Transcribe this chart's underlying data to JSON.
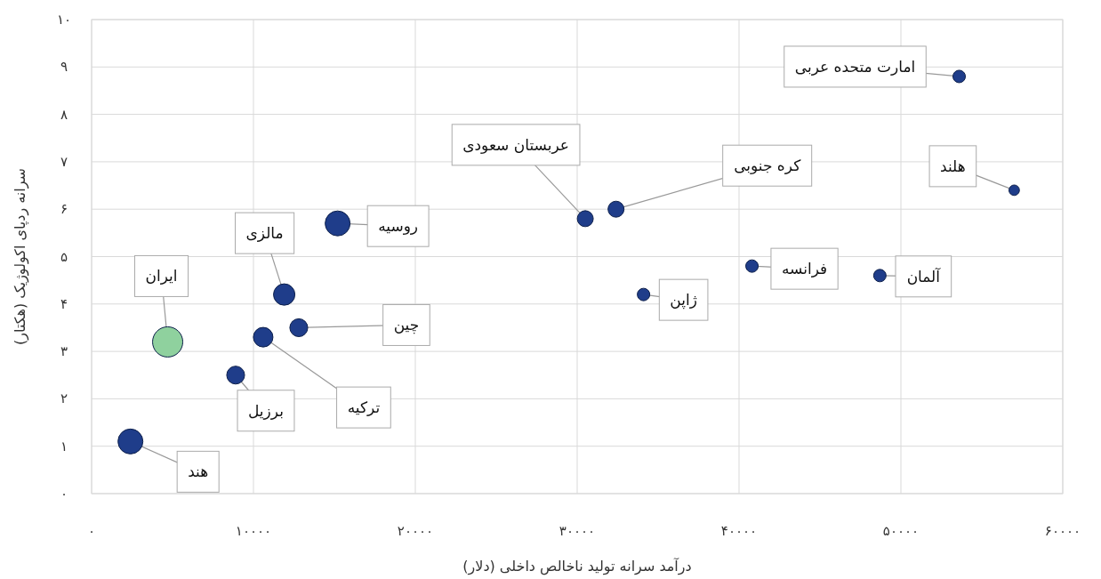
{
  "chart_data": {
    "type": "bubble",
    "xlabel": "درآمد سرانه تولید ناخالص داخلی (دلار)",
    "ylabel": "سرانه ردپای اکولوژیک (هکتار)",
    "x": [
      2400,
      4700,
      8900,
      10600,
      12800,
      11900,
      15200,
      30500,
      32400,
      34100,
      40800,
      48700,
      53600,
      57000
    ],
    "values": [
      1.1,
      3.2,
      2.5,
      3.3,
      3.5,
      4.2,
      5.7,
      5.8,
      6.0,
      4.2,
      4.8,
      4.6,
      8.8,
      6.4
    ],
    "sizes": [
      0.68,
      1,
      0.35,
      0.42,
      0.35,
      0.5,
      0.68,
      0.28,
      0.28,
      0.17,
      0.17,
      0.17,
      0.17,
      0.12
    ],
    "colors": [
      "#1f3d8a",
      "#8fd19e",
      "#1f3d8a",
      "#1f3d8a",
      "#1f3d8a",
      "#1f3d8a",
      "#1f3d8a",
      "#1f3d8a",
      "#1f3d8a",
      "#1f3d8a",
      "#1f3d8a",
      "#1f3d8a",
      "#1f3d8a",
      "#1f3d8a"
    ],
    "annotations": [
      {
        "text": "هند",
        "x": 2400,
        "y": 1.1
      },
      {
        "text": "ایران",
        "x": 4700,
        "y": 3.2
      },
      {
        "text": "برزیل",
        "x": 8900,
        "y": 2.5
      },
      {
        "text": "ترکیه",
        "x": 10600,
        "y": 3.3
      },
      {
        "text": "چین",
        "x": 12800,
        "y": 3.5
      },
      {
        "text": "مالزی",
        "x": 11900,
        "y": 4.2
      },
      {
        "text": "روسیه",
        "x": 15200,
        "y": 5.7
      },
      {
        "text": "عربستان سعودی",
        "x": 30500,
        "y": 5.8
      },
      {
        "text": "کره جنوبی",
        "x": 32400,
        "y": 6.0
      },
      {
        "text": "ژاپن",
        "x": 34100,
        "y": 4.2
      },
      {
        "text": "فرانسه",
        "x": 40800,
        "y": 4.8
      },
      {
        "text": "آلمان",
        "x": 48700,
        "y": 4.6
      },
      {
        "text": "امارت متحده عربی",
        "x": 53600,
        "y": 8.8
      },
      {
        "text": "هلند",
        "x": 57000,
        "y": 6.4
      }
    ],
    "xlim": [
      0,
      60000
    ],
    "ylim": [
      0,
      10
    ],
    "xticks": [
      {
        "value": 0,
        "label": "۰"
      },
      {
        "value": 10000,
        "label": "۱۰۰۰۰"
      },
      {
        "value": 20000,
        "label": "۲۰۰۰۰"
      },
      {
        "value": 30000,
        "label": "۳۰۰۰۰"
      },
      {
        "value": 40000,
        "label": "۴۰۰۰۰"
      },
      {
        "value": 50000,
        "label": "۵۰۰۰۰"
      },
      {
        "value": 60000,
        "label": "۶۰۰۰۰"
      }
    ],
    "yticks": [
      {
        "value": 0,
        "label": "۰"
      },
      {
        "value": 1,
        "label": "۱"
      },
      {
        "value": 2,
        "label": "۲"
      },
      {
        "value": 3,
        "label": "۳"
      },
      {
        "value": 4,
        "label": "۴"
      },
      {
        "value": 5,
        "label": "۵"
      },
      {
        "value": 6,
        "label": "۶"
      },
      {
        "value": 7,
        "label": "۷"
      },
      {
        "value": 8,
        "label": "۸"
      },
      {
        "value": 9,
        "label": "۹"
      },
      {
        "value": 10,
        "label": "۱۰"
      }
    ],
    "grid": true
  }
}
